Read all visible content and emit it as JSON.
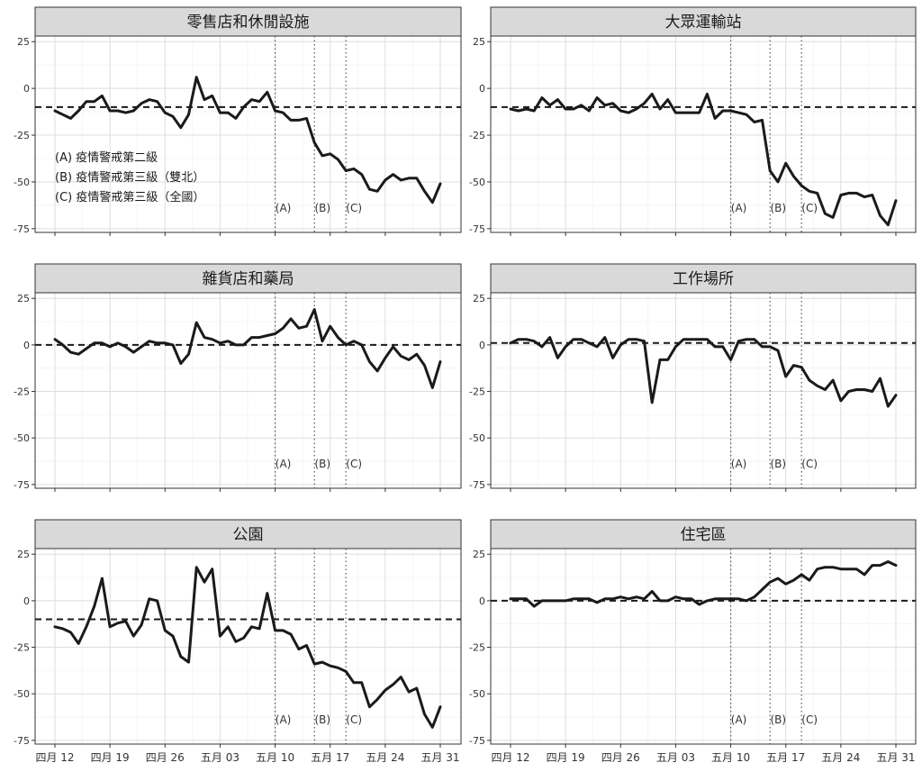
{
  "chart_data": {
    "type": "line",
    "facets": [
      {
        "title": "零售店和休閒設施",
        "baseline": -10,
        "values": [
          -12,
          -14,
          -16,
          -12,
          -7,
          -7,
          -4,
          -12,
          -12,
          -13,
          -12,
          -8,
          -6,
          -7,
          -13,
          -15,
          -21,
          -14,
          6,
          -6,
          -4,
          -13,
          -13,
          -16,
          -10,
          -6,
          -7,
          -2,
          -12,
          -13,
          -17,
          -17,
          -16,
          -29,
          -36,
          -35,
          -38,
          -44,
          -43,
          -46,
          -54,
          -55,
          -49,
          -46,
          -49,
          -48,
          -48,
          -55,
          -61,
          -51
        ],
        "annotations": [
          {
            "label": "(A) 疫情警戒第二級"
          },
          {
            "label": "(B) 疫情警戒第三級（雙北）"
          },
          {
            "label": "(C) 疫情警戒第三級（全國）"
          }
        ]
      },
      {
        "title": "大眾運輸站",
        "baseline": -10,
        "values": [
          -11,
          -12,
          -11,
          -12,
          -5,
          -9,
          -6,
          -11,
          -11,
          -9,
          -12,
          -5,
          -9,
          -8,
          -12,
          -13,
          -11,
          -8,
          -3,
          -11,
          -6,
          -13,
          -13,
          -13,
          -13,
          -3,
          -16,
          -12,
          -12,
          -13,
          -14,
          -18,
          -17,
          -44,
          -50,
          -40,
          -47,
          -52,
          -55,
          -56,
          -67,
          -69,
          -57,
          -56,
          -56,
          -58,
          -57,
          -68,
          -73,
          -60
        ]
      },
      {
        "title": "雜貨店和藥局",
        "baseline": 0,
        "values": [
          3,
          0,
          -4,
          -5,
          -2,
          1,
          1,
          -1,
          1,
          -1,
          -4,
          -1,
          2,
          1,
          1,
          0,
          -10,
          -5,
          12,
          4,
          3,
          1,
          2,
          0,
          0,
          4,
          4,
          5,
          6,
          9,
          14,
          9,
          10,
          19,
          2,
          10,
          4,
          0,
          2,
          0,
          -9,
          -14,
          -7,
          -1,
          -6,
          -8,
          -5,
          -11,
          -23,
          -9
        ]
      },
      {
        "title": "工作場所",
        "baseline": 1,
        "values": [
          1,
          3,
          3,
          2,
          -1,
          4,
          -7,
          -1,
          3,
          3,
          1,
          -1,
          4,
          -7,
          0,
          3,
          3,
          2,
          -31,
          -8,
          -8,
          -1,
          3,
          3,
          3,
          3,
          -1,
          -1,
          -8,
          2,
          3,
          3,
          -1,
          -1,
          -3,
          -17,
          -11,
          -12,
          -19,
          -22,
          -24,
          -19,
          -30,
          -25,
          -24,
          -24,
          -25,
          -18,
          -33,
          -27
        ]
      },
      {
        "title": "公園",
        "baseline": -10,
        "values": [
          -14,
          -15,
          -17,
          -23,
          -14,
          -3,
          12,
          -14,
          -12,
          -11,
          -19,
          -13,
          1,
          0,
          -16,
          -19,
          -30,
          -33,
          18,
          10,
          17,
          -19,
          -14,
          -22,
          -20,
          -14,
          -15,
          4,
          -16,
          -16,
          -18,
          -26,
          -24,
          -34,
          -33,
          -35,
          -36,
          -38,
          -44,
          -44,
          -57,
          -53,
          -48,
          -45,
          -41,
          -49,
          -47,
          -61,
          -68,
          -57
        ]
      },
      {
        "title": "住宅區",
        "baseline": 0,
        "values": [
          1,
          1,
          1,
          -3,
          0,
          0,
          0,
          0,
          1,
          1,
          1,
          -1,
          1,
          1,
          2,
          1,
          2,
          1,
          5,
          0,
          0,
          2,
          1,
          1,
          -2,
          0,
          1,
          1,
          1,
          1,
          0,
          2,
          6,
          10,
          12,
          9,
          11,
          14,
          11,
          17,
          18,
          18,
          17,
          17,
          17,
          14,
          19,
          19,
          21,
          19
        ]
      }
    ],
    "markers": [
      {
        "label": "(A)",
        "day": 28
      },
      {
        "label": "(B)",
        "day": 33
      },
      {
        "label": "(C)",
        "day": 37
      }
    ],
    "x_ticks": [
      "四月 12",
      "四月 19",
      "四月 26",
      "五月 03",
      "五月 10",
      "五月 17",
      "五月 24",
      "五月 31"
    ],
    "y_ticks": [
      "25",
      "0",
      "-25",
      "-50",
      "-75"
    ],
    "ylim": [
      -77,
      28
    ],
    "xlim": [
      0,
      49
    ],
    "grid": true,
    "legend": "none"
  }
}
